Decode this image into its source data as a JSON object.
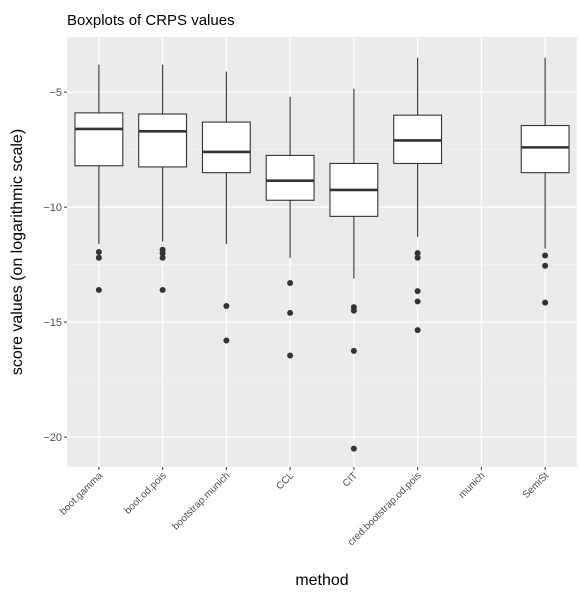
{
  "chart_data": {
    "type": "boxplot",
    "title": "Boxplots of CRPS values",
    "xlabel": "method",
    "ylabel": "score values (on logarithmic scale)",
    "ylim": [
      -21.3,
      -2.6
    ],
    "yticks": [
      -5,
      -10,
      -15,
      -20
    ],
    "grid": true,
    "categories": [
      "boot.gamma",
      "boot.od.pois",
      "bootstrap.munich",
      "CCL",
      "CIT",
      "cred.bootstrap.od.pois",
      "munich",
      "SemiSt"
    ],
    "boxes": [
      {
        "category": "boot.gamma",
        "whisker_low": -11.6,
        "q1": -8.2,
        "median": -6.6,
        "q3": -5.9,
        "whisker_high": -3.8,
        "outliers": [
          -11.95,
          -12.2,
          -13.6
        ]
      },
      {
        "category": "boot.od.pois",
        "whisker_low": -11.5,
        "q1": -8.25,
        "median": -6.7,
        "q3": -5.95,
        "whisker_high": -3.8,
        "outliers": [
          -11.85,
          -12.0,
          -12.2,
          -13.6
        ]
      },
      {
        "category": "bootstrap.munich",
        "whisker_low": -11.6,
        "q1": -8.5,
        "median": -7.6,
        "q3": -6.3,
        "whisker_high": -4.1,
        "outliers": [
          -14.3,
          -15.8
        ]
      },
      {
        "category": "CCL",
        "whisker_low": -12.2,
        "q1": -9.7,
        "median": -8.85,
        "q3": -7.75,
        "whisker_high": -5.2,
        "outliers": [
          -13.3,
          -14.6,
          -16.45
        ]
      },
      {
        "category": "CIT",
        "whisker_low": -13.1,
        "q1": -10.4,
        "median": -9.25,
        "q3": -8.1,
        "whisker_high": -4.85,
        "outliers": [
          -14.35,
          -14.5,
          -16.25,
          -20.5
        ]
      },
      {
        "category": "cred.bootstrap.od.pois",
        "whisker_low": -11.3,
        "q1": -8.1,
        "median": -7.1,
        "q3": -6.0,
        "whisker_high": -3.5,
        "outliers": [
          -12.0,
          -12.2,
          -13.65,
          -14.1,
          -15.35
        ]
      },
      {
        "category": "munich",
        "whisker_low": null,
        "q1": null,
        "median": null,
        "q3": null,
        "whisker_high": null,
        "outliers": []
      },
      {
        "category": "SemiSt",
        "whisker_low": -11.8,
        "q1": -8.5,
        "median": -7.4,
        "q3": -6.45,
        "whisker_high": -3.5,
        "outliers": [
          -12.1,
          -12.55,
          -14.15
        ]
      }
    ]
  }
}
